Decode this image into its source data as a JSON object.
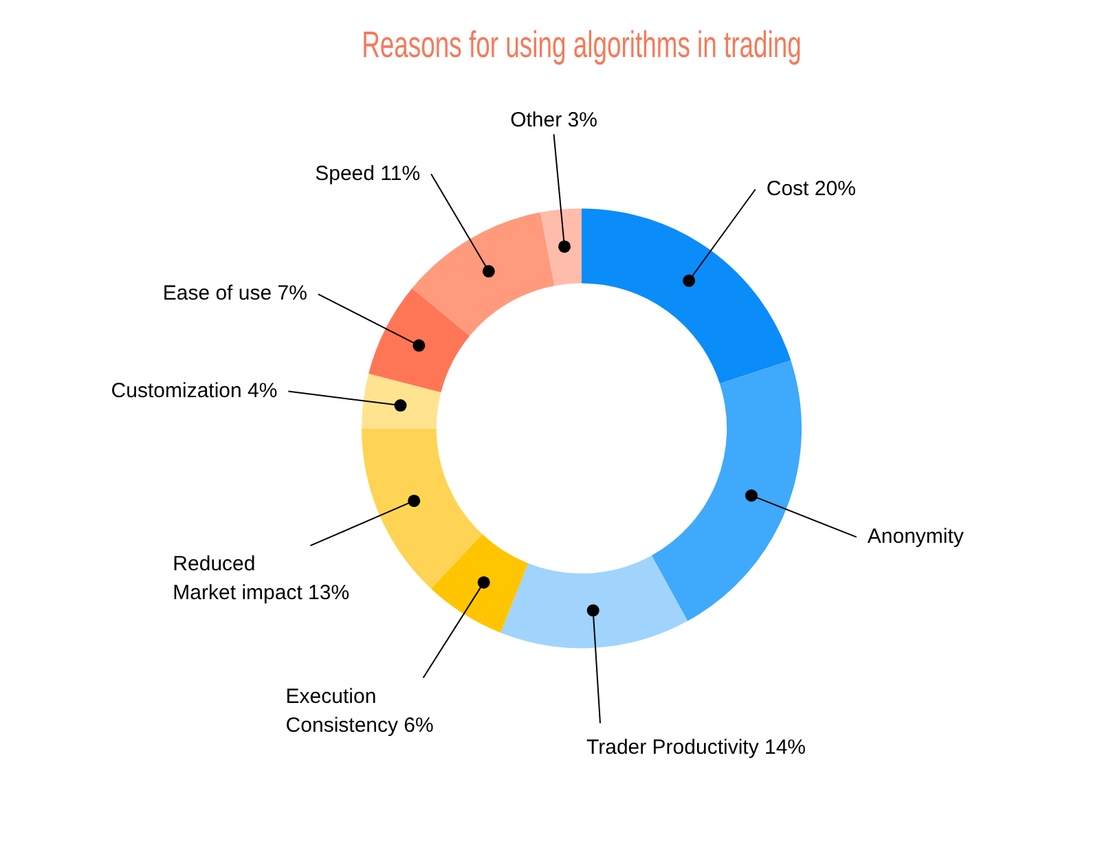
{
  "chart_data": {
    "type": "donut",
    "title": "Reasons for using algorithms in trading",
    "categories": [
      "Cost",
      "Anonymity",
      "Trader Productivity",
      "Execution Consistency",
      "Reduced Market impact",
      "Customization",
      "Ease of use",
      "Speed",
      "Other"
    ],
    "values": [
      20,
      22,
      14,
      6,
      13,
      4,
      7,
      11,
      3
    ],
    "value_labels": [
      "20%",
      null,
      "14%",
      "6%",
      "13%",
      "4%",
      "7%",
      "11%",
      "3%"
    ],
    "colors": [
      "#0a8cf9",
      "#3fa9fb",
      "#a0d4fd",
      "#ffc500",
      "#ffd454",
      "#ffe38f",
      "#ff7657",
      "#ff9a7d",
      "#ffbcab"
    ],
    "legend": false
  }
}
